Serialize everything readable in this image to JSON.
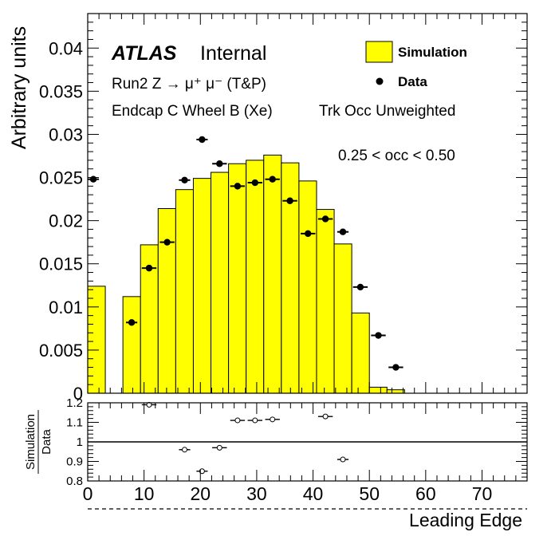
{
  "chart_data": [
    {
      "type": "bar",
      "panel": "main",
      "ylabel": "Arbitrary units",
      "ylim": [
        0,
        0.044
      ],
      "xlim": [
        0,
        78
      ],
      "yticks": [
        "0",
        "0.005",
        "0.01",
        "0.015",
        "0.02",
        "0.025",
        "0.03",
        "0.035",
        "0.04"
      ],
      "ytick_values": [
        0,
        0.005,
        0.01,
        0.015,
        0.02,
        0.025,
        0.03,
        0.035,
        0.04
      ],
      "legend": {
        "placement": "top-right",
        "simulation_label": "Simulation",
        "data_label": "Data"
      },
      "simulation": {
        "name": "Simulation",
        "color": "#ffff00",
        "bin_edges": [
          0,
          3.125,
          6.25,
          9.375,
          12.5,
          15.625,
          18.75,
          21.875,
          25,
          28.125,
          31.25,
          34.375,
          37.5,
          40.625,
          43.75,
          46.875,
          50,
          53.125,
          56.25
        ],
        "values": [
          0.0124,
          0.0,
          0.0112,
          0.0172,
          0.0214,
          0.0236,
          0.0249,
          0.0256,
          0.0266,
          0.027,
          0.0276,
          0.0267,
          0.0246,
          0.0213,
          0.0173,
          0.0093,
          0.0007,
          0.0004
        ]
      },
      "data": {
        "name": "Data",
        "x": [
          1.0,
          7.8,
          10.9,
          14.1,
          17.2,
          20.3,
          23.4,
          26.6,
          29.7,
          32.8,
          35.9,
          39.1,
          42.2,
          45.3,
          48.4,
          51.6,
          54.7
        ],
        "xerr": [
          1.0,
          1.0,
          1.3,
          1.3,
          1.0,
          1.0,
          1.3,
          1.3,
          1.3,
          1.3,
          1.3,
          1.3,
          1.3,
          1.0,
          1.3,
          1.3,
          1.3
        ],
        "y": [
          0.0248,
          0.0082,
          0.0145,
          0.0175,
          0.0247,
          0.0294,
          0.0266,
          0.024,
          0.0244,
          0.0248,
          0.0223,
          0.0185,
          0.0202,
          0.0187,
          0.0123,
          0.0067,
          0.003
        ]
      },
      "annotations": {
        "atlas": "ATLAS",
        "internal": "Internal",
        "run": "Run2 Z → μ⁺ μ⁻ (T&P)",
        "region": "Endcap C Wheel B (Xe)",
        "weighting": "Trk Occ Unweighted",
        "occupancy": "0.25 < occ < 0.50"
      },
      "grid": false
    },
    {
      "type": "scatter",
      "panel": "ratio",
      "ylabel_top": "Simulation",
      "ylabel_bottom": "Data",
      "xlabel": "Leading Edge",
      "ylim": [
        0.8,
        1.2
      ],
      "xlim": [
        0,
        78
      ],
      "yticks": [
        "0.8",
        "0.9",
        "1",
        "1.1",
        "1.2"
      ],
      "ytick_values": [
        0.8,
        0.9,
        1.0,
        1.1,
        1.2
      ],
      "xticks": [
        "0",
        "10",
        "20",
        "30",
        "40",
        "50",
        "60",
        "70"
      ],
      "xtick_values": [
        0,
        10,
        20,
        30,
        40,
        50,
        60,
        70
      ],
      "reference_line": 1.0,
      "points": {
        "x": [
          10.9,
          17.2,
          20.3,
          23.4,
          26.6,
          29.7,
          32.8,
          42.2,
          45.3
        ],
        "xerr": [
          1.3,
          1.0,
          1.0,
          1.3,
          1.3,
          1.3,
          1.3,
          1.3,
          1.0
        ],
        "y": [
          1.19,
          0.96,
          0.85,
          0.97,
          1.11,
          1.11,
          1.115,
          1.13,
          0.91
        ]
      },
      "grid": false
    }
  ]
}
